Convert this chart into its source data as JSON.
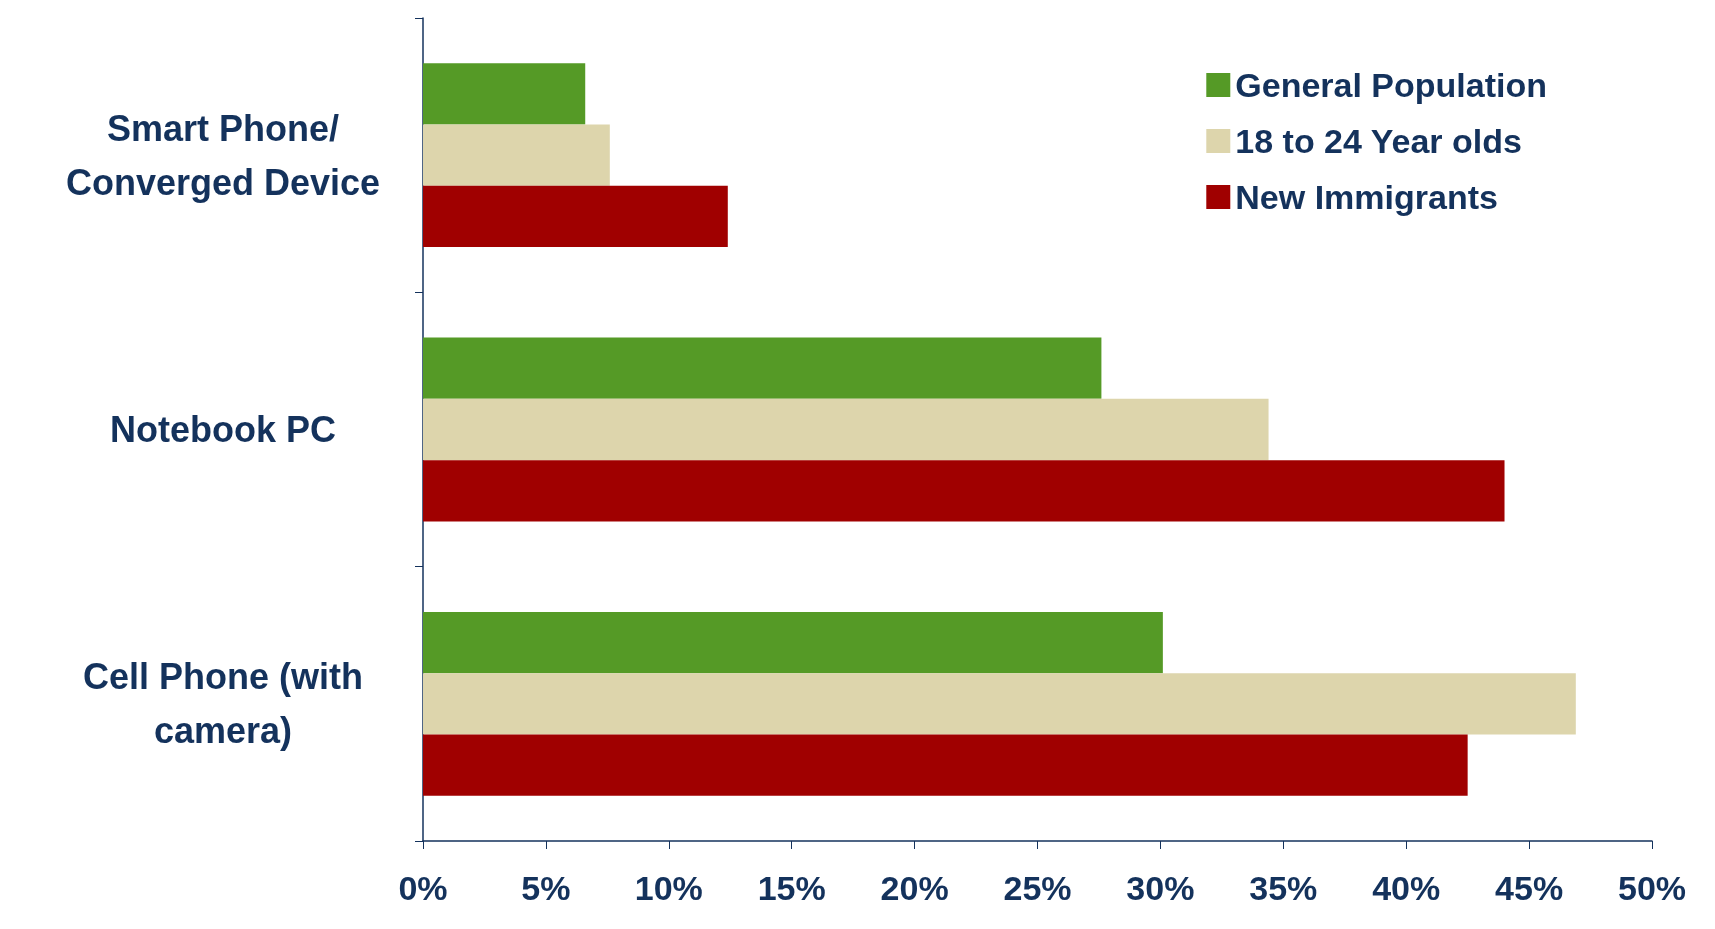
{
  "chart_data": {
    "type": "bar",
    "orientation": "horizontal",
    "categories": [
      "Smart Phone/\nConverged Device",
      "Notebook PC",
      "Cell Phone (with\ncamera)"
    ],
    "series": [
      {
        "name": "General Population",
        "color": "#559a26",
        "values": [
          6.6,
          27.6,
          30.1
        ]
      },
      {
        "name": "18 to 24 Year olds",
        "color": "#ddd5ac",
        "values": [
          7.6,
          34.4,
          46.9
        ]
      },
      {
        "name": "New Immigrants",
        "color": "#a00000",
        "values": [
          12.4,
          44.0,
          42.5
        ]
      }
    ],
    "xlim": [
      0,
      50
    ],
    "xticks": [
      {
        "value": 0,
        "label": "0%"
      },
      {
        "value": 5,
        "label": "5%"
      },
      {
        "value": 10,
        "label": "10%"
      },
      {
        "value": 15,
        "label": "15%"
      },
      {
        "value": 20,
        "label": "20%"
      },
      {
        "value": 25,
        "label": "25%"
      },
      {
        "value": 30,
        "label": "30%"
      },
      {
        "value": 35,
        "label": "35%"
      },
      {
        "value": 40,
        "label": "40%"
      },
      {
        "value": 45,
        "label": "45%"
      },
      {
        "value": 50,
        "label": "50%"
      }
    ],
    "grid": false,
    "legend": "top right"
  }
}
